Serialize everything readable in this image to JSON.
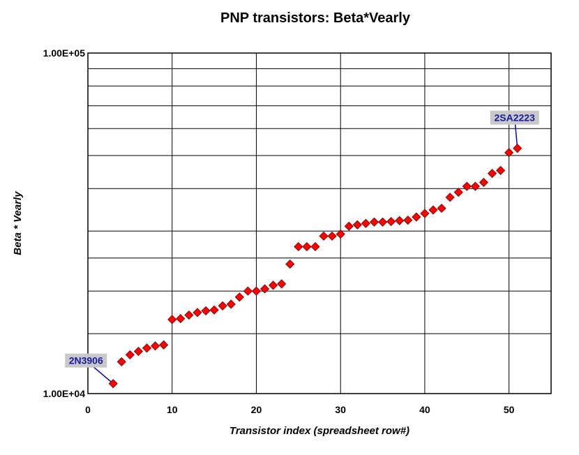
{
  "chart_data": {
    "type": "scatter",
    "title": "PNP transistors:  Beta*Vearly",
    "xlabel": "Transistor index (spreadsheet row#)",
    "ylabel": "Beta * Vearly",
    "xlim": [
      0,
      55
    ],
    "ylim": [
      10000,
      100000
    ],
    "y_scale": "log",
    "x_ticks": [
      0,
      10,
      20,
      30,
      40,
      50
    ],
    "x_tick_labels": [
      "0",
      "10",
      "20",
      "30",
      "40",
      "50"
    ],
    "y_tick_labels": [
      "1.00E+04",
      "1.00E+05"
    ],
    "y_tick_values": [
      10000,
      100000
    ],
    "y_gridlines": [
      10000,
      15000,
      20000,
      25000,
      30000,
      40000,
      50000,
      60000,
      70000,
      80000,
      90000,
      100000
    ],
    "grid": true,
    "marker": "diamond",
    "marker_color": "#ff0000",
    "series": [
      {
        "x": [
          3,
          4,
          5,
          6,
          7,
          8,
          9,
          10,
          11,
          12,
          13,
          14,
          15,
          16,
          17,
          18,
          19,
          20,
          21,
          22,
          23,
          24,
          25,
          26,
          27,
          28,
          29,
          30,
          31,
          32,
          33,
          34,
          35,
          36,
          37,
          38,
          39,
          40,
          41,
          42,
          43,
          44,
          45,
          46,
          47,
          48,
          49,
          50,
          51
        ],
        "y": [
          10700,
          12400,
          13000,
          13300,
          13600,
          13800,
          13900,
          16500,
          16600,
          17000,
          17300,
          17500,
          17600,
          18100,
          18300,
          19200,
          20000,
          20000,
          20300,
          20800,
          21000,
          24000,
          27000,
          27000,
          27000,
          29000,
          29000,
          29400,
          31000,
          31300,
          31600,
          31900,
          31900,
          32000,
          32200,
          32300,
          33000,
          33800,
          34600,
          35000,
          37700,
          39000,
          40600,
          40600,
          41700,
          44300,
          45200,
          51000,
          52500
        ]
      }
    ],
    "annotations": [
      {
        "text": "2N3906",
        "x": 3,
        "y": 10700
      },
      {
        "text": "2SA2223",
        "x": 51,
        "y": 52500
      }
    ]
  },
  "colors": {
    "annotation_box": "#c8c8c8",
    "annotation_text": "#1a1aa0",
    "annotation_line": "#0000cc"
  }
}
